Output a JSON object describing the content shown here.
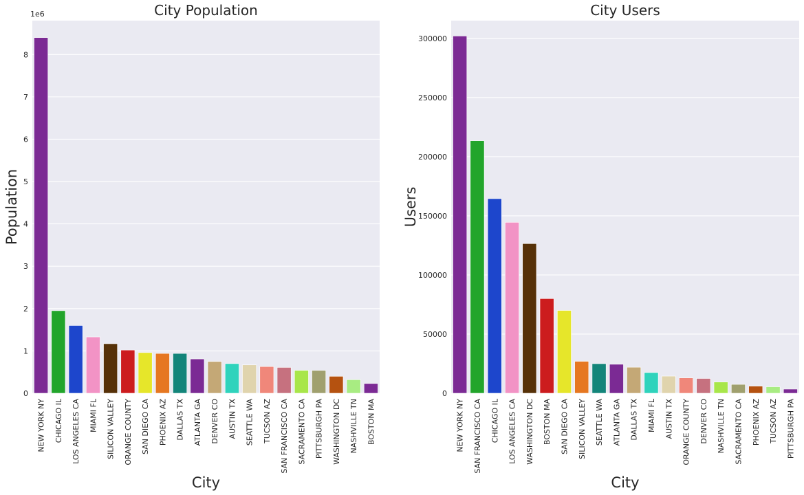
{
  "chart_data": [
    {
      "type": "bar",
      "title": "City Population",
      "xlabel": "City",
      "ylabel": "Population",
      "y_offset_label": "1e6",
      "ylim": [
        0,
        8800000
      ],
      "yticks": [
        0,
        1000000,
        2000000,
        3000000,
        4000000,
        5000000,
        6000000,
        7000000,
        8000000
      ],
      "ytick_labels": [
        "0",
        "1",
        "2",
        "3",
        "4",
        "5",
        "6",
        "7",
        "8"
      ],
      "grid": true,
      "categories": [
        "NEW YORK NY",
        "CHICAGO IL",
        "LOS ANGELES CA",
        "MIAMI FL",
        "SILICON VALLEY",
        "ORANGE COUNTY",
        "SAN DIEGO CA",
        "PHOENIX AZ",
        "DALLAS TX",
        "ATLANTA GA",
        "DENVER CO",
        "AUSTIN TX",
        "SEATTLE WA",
        "TUCSON AZ",
        "SAN FRANCISCO CA",
        "SACRAMENTO CA",
        "PITTSBURGH PA",
        "WASHINGTON DC",
        "NASHVILLE TN",
        "BOSTON MA"
      ],
      "values": [
        8400000,
        1950000,
        1600000,
        1330000,
        1170000,
        1020000,
        960000,
        940000,
        940000,
        810000,
        750000,
        700000,
        670000,
        630000,
        610000,
        540000,
        540000,
        400000,
        320000,
        230000
      ],
      "colors": [
        "#7b2a94",
        "#22a52b",
        "#1d46cc",
        "#f293c5",
        "#563108",
        "#cc1c1e",
        "#e6e62a",
        "#e67721",
        "#13857a",
        "#7b2a94",
        "#c4a876",
        "#2fd3bc",
        "#e0d4ad",
        "#f0877a",
        "#c6717f",
        "#a8e64a",
        "#a0a06e",
        "#b55210",
        "#a8ec82",
        "#7b2a94"
      ]
    },
    {
      "type": "bar",
      "title": "City Users",
      "xlabel": "City",
      "ylabel": "Users",
      "ylim": [
        0,
        315000
      ],
      "yticks": [
        0,
        50000,
        100000,
        150000,
        200000,
        250000,
        300000
      ],
      "ytick_labels": [
        "0",
        "50000",
        "100000",
        "150000",
        "200000",
        "250000",
        "300000"
      ],
      "grid": true,
      "categories": [
        "NEW YORK NY",
        "SAN FRANCISCO CA",
        "CHICAGO IL",
        "LOS ANGELES CA",
        "WASHINGTON DC",
        "BOSTON MA",
        "SAN DIEGO CA",
        "SILICON VALLEY",
        "SEATTLE WA",
        "ATLANTA GA",
        "DALLAS TX",
        "MIAMI FL",
        "AUSTIN TX",
        "ORANGE COUNTY",
        "DENVER CO",
        "NASHVILLE TN",
        "SACRAMENTO CA",
        "PHOENIX AZ",
        "TUCSON AZ",
        "PITTSBURGH PA"
      ],
      "values": [
        302000,
        213500,
        164500,
        144500,
        126500,
        80000,
        70000,
        27000,
        25000,
        24500,
        22000,
        17500,
        14500,
        13000,
        12500,
        9500,
        7500,
        6000,
        5500,
        3500
      ],
      "colors": [
        "#7b2a94",
        "#22a52b",
        "#1d46cc",
        "#f293c5",
        "#563108",
        "#cc1c1e",
        "#e6e62a",
        "#e67721",
        "#13857a",
        "#7b2a94",
        "#c4a876",
        "#2fd3bc",
        "#e0d4ad",
        "#f0877a",
        "#c6717f",
        "#a8e64a",
        "#a0a06e",
        "#b55210",
        "#a8ec82",
        "#7b2a94"
      ]
    }
  ]
}
